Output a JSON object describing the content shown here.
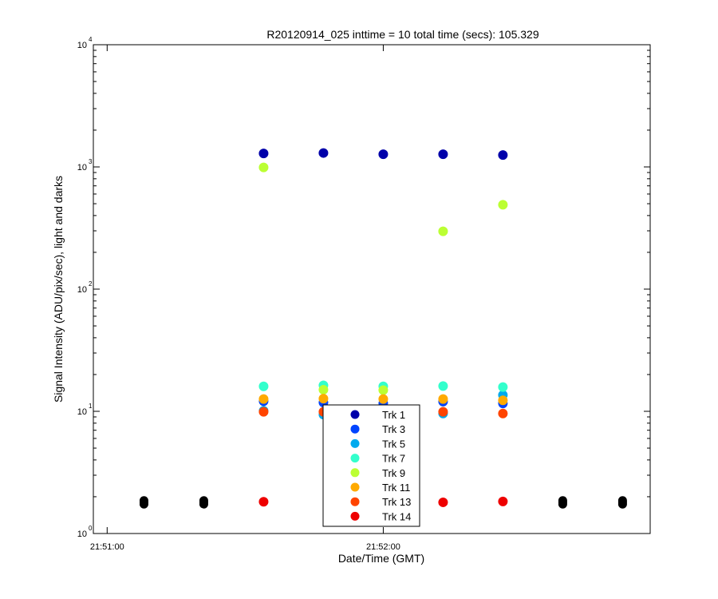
{
  "chart_data": {
    "type": "scatter",
    "title": "R20120914_025 inttime = 10 total time (secs): 105.329",
    "xlabel": "Date/Time (GMT)",
    "ylabel": "Signal Intensity (ADU/pix/sec), light and darks",
    "yscale": "log",
    "ylim": [
      1,
      10000
    ],
    "xlim": [
      "21:50:57",
      "21:52:58"
    ],
    "x_ticks": [
      "21:51:00",
      "21:52:00"
    ],
    "y_ticks": [
      {
        "value": 1,
        "base": "10",
        "exponent": "0"
      },
      {
        "value": 10,
        "base": "10",
        "exponent": "1"
      },
      {
        "value": 100,
        "base": "10",
        "exponent": "2"
      },
      {
        "value": 1000,
        "base": "10",
        "exponent": "3"
      },
      {
        "value": 10000,
        "base": "10",
        "exponent": "4"
      }
    ],
    "legend_position": "bottom-center",
    "grid": false,
    "series": [
      {
        "name": "Trk 1",
        "color": "#0000aa",
        "points": [
          [
            "21:51:34",
            1290
          ],
          [
            "21:51:47",
            1300
          ],
          [
            "21:52:00",
            1270
          ],
          [
            "21:52:13",
            1270
          ],
          [
            "21:52:26",
            1250
          ]
        ]
      },
      {
        "name": "Trk 3",
        "color": "#0044ff",
        "points": [
          [
            "21:51:34",
            12.1
          ],
          [
            "21:51:47",
            11.8
          ],
          [
            "21:52:00",
            11.6
          ],
          [
            "21:52:13",
            12.0
          ],
          [
            "21:52:26",
            11.6
          ]
        ]
      },
      {
        "name": "Trk 5",
        "color": "#00aaee",
        "points": [
          [
            "21:51:34",
            10.1
          ],
          [
            "21:51:47",
            9.4
          ],
          [
            "21:52:00",
            9.3
          ],
          [
            "21:52:13",
            9.6
          ],
          [
            "21:52:26",
            13.6
          ]
        ]
      },
      {
        "name": "Trk 7",
        "color": "#33ffcc",
        "points": [
          [
            "21:51:34",
            16.0
          ],
          [
            "21:51:47",
            16.3
          ],
          [
            "21:52:00",
            16.0
          ],
          [
            "21:52:13",
            16.1
          ],
          [
            "21:52:26",
            15.8
          ]
        ]
      },
      {
        "name": "Trk 9",
        "color": "#bbff33",
        "points": [
          [
            "21:51:34",
            990
          ],
          [
            "21:51:47",
            15.0
          ],
          [
            "21:52:00",
            14.9
          ],
          [
            "21:52:13",
            297
          ],
          [
            "21:52:26",
            490
          ]
        ]
      },
      {
        "name": "Trk 11",
        "color": "#ffaa00",
        "points": [
          [
            "21:51:34",
            12.6
          ],
          [
            "21:51:47",
            12.7
          ],
          [
            "21:52:00",
            12.6
          ],
          [
            "21:52:13",
            12.6
          ],
          [
            "21:52:26",
            12.3
          ]
        ]
      },
      {
        "name": "Trk 13",
        "color": "#ff4400",
        "points": [
          [
            "21:51:34",
            9.9
          ],
          [
            "21:51:47",
            9.9
          ],
          [
            "21:52:00",
            9.9
          ],
          [
            "21:52:13",
            9.9
          ],
          [
            "21:52:26",
            9.6
          ]
        ]
      },
      {
        "name": "Trk 14",
        "color": "#ee0000",
        "points": [
          [
            "21:51:34",
            1.82
          ],
          [
            "21:52:13",
            1.8
          ],
          [
            "21:52:26",
            1.83
          ]
        ]
      }
    ],
    "dark_series": {
      "color": "#000000",
      "points": [
        [
          "21:51:08",
          1.86
        ],
        [
          "21:51:08",
          1.8
        ],
        [
          "21:51:08",
          1.74
        ],
        [
          "21:51:21",
          1.86
        ],
        [
          "21:51:21",
          1.8
        ],
        [
          "21:51:21",
          1.74
        ],
        [
          "21:52:39",
          1.86
        ],
        [
          "21:52:39",
          1.8
        ],
        [
          "21:52:39",
          1.74
        ],
        [
          "21:52:52",
          1.86
        ],
        [
          "21:52:52",
          1.8
        ],
        [
          "21:52:52",
          1.74
        ]
      ]
    }
  }
}
